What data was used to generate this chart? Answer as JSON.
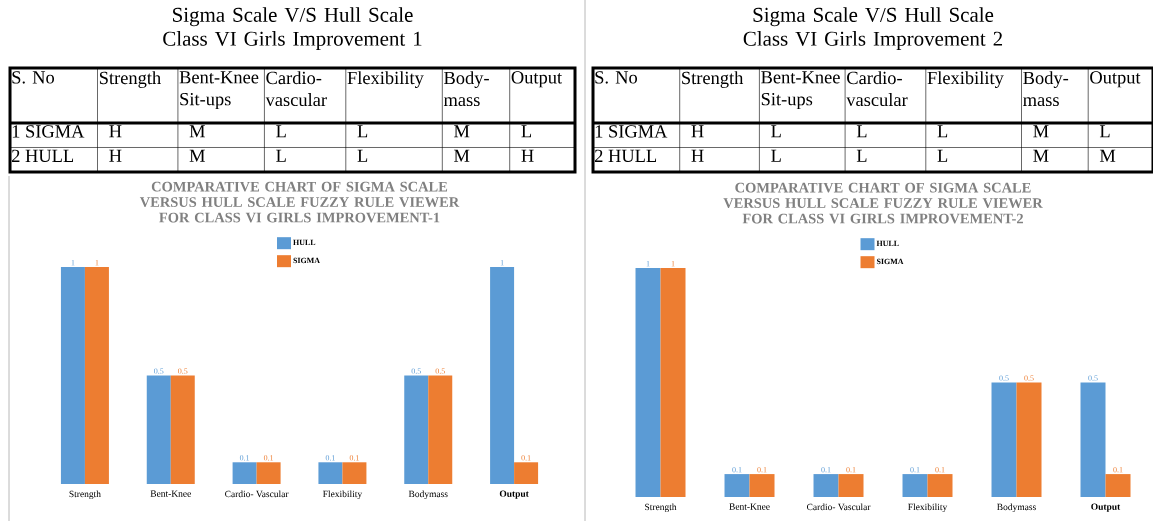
{
  "chart_data": [
    {
      "type": "other",
      "title": "Sigma Scale V/S Hull Scale Class VI Girls Improvement 1",
      "categories": [
        "S. No",
        "Strength",
        "Bent-Knee Sit-ups",
        "Cardio-vascular",
        "Flexibility",
        "Body-mass",
        "Output"
      ],
      "annotations": [
        "1 SIGMA",
        "H",
        "M",
        "L",
        "L",
        "M",
        "L",
        "2 HULL",
        "H",
        "M",
        "L",
        "L",
        "M",
        "H"
      ]
    },
    {
      "type": "other",
      "title": "Sigma Scale V/S Hull Scale Class VI Girls Improvement 2",
      "categories": [
        "S. No",
        "Strength",
        "Bent-Knee Sit-ups",
        "Cardio-vascular",
        "Flexibility",
        "Body-mass",
        "Output"
      ],
      "annotations": [
        "1 SIGMA",
        "H",
        "L",
        "L",
        "L",
        "M",
        "L",
        "2 HULL",
        "H",
        "L",
        "L",
        "L",
        "M",
        "M"
      ]
    },
    {
      "type": "bar",
      "title": "COMPARATIVE CHART OF SIGMA SCALE VERSUS HULL SCALE FUZZY RULE VIEWER FOR CLASS VI GIRLS IMPROVEMENT-1",
      "categories": [
        "Strength",
        "Bent-Knee",
        "Cardio- Vascular",
        "Flexibility",
        "Bodymass",
        "**Output**"
      ],
      "series": [
        {
          "name": "HULL",
          "color": "#5b9bd5",
          "values": [
            1,
            0.5,
            0.1,
            0.1,
            0.5,
            1
          ]
        },
        {
          "name": "SIGMA",
          "color": "#ed7d31",
          "values": [
            1,
            0.5,
            0.1,
            0.1,
            0.5,
            0.1
          ]
        }
      ],
      "ylim": [
        0,
        1
      ],
      "tick_labels": "x",
      "data_labels": true,
      "legend": "top",
      "grid": false
    },
    {
      "type": "bar",
      "title": "COMPARATIVE CHART OF SIGMA SCALE VERSUS HULL SCALE FUZZY RULE VIEWER FOR CLASS VI GIRLS IMPROVEMENT-2",
      "categories": [
        "Strength",
        "Bent-Knee",
        "Cardio- Vascular",
        "Flexibility",
        "Bodymass",
        "**Output**"
      ],
      "series": [
        {
          "name": "HULL",
          "color": "#5b9bd5",
          "values": [
            1,
            0.1,
            0.1,
            0.1,
            0.5,
            0.5
          ]
        },
        {
          "name": "SIGMA",
          "color": "#ed7d31",
          "values": [
            1,
            0.1,
            0.1,
            0.1,
            0.5,
            0.1
          ]
        }
      ],
      "ylim": [
        0,
        1
      ],
      "tick_labels": "x",
      "data_labels": true,
      "legend": "top",
      "grid": false
    }
  ]
}
